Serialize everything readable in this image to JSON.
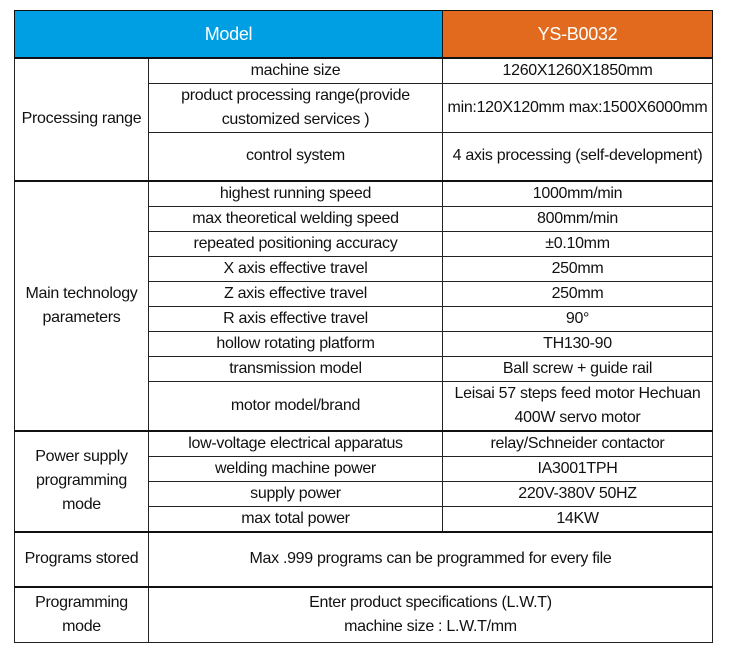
{
  "header": {
    "label": "Model",
    "value": "YS-B0032",
    "label_bg": "#009fe3",
    "value_bg": "#e26a1e"
  },
  "groups": [
    {
      "name": "Processing range",
      "rows": [
        {
          "param": "machine size",
          "value": "1260X1260X1850mm",
          "h": 1
        },
        {
          "param": "product processing range(provide customized services )",
          "value": "min:120X120mm max:1500X6000mm",
          "h": 2
        },
        {
          "param": "control system",
          "value": "4 axis processing (self-development)",
          "h": 2
        }
      ]
    },
    {
      "name": "Main technology parameters",
      "rows": [
        {
          "param": "highest running speed",
          "value": "1000mm/min",
          "h": 1
        },
        {
          "param": "max theoretical welding speed",
          "value": "800mm/min",
          "h": 1
        },
        {
          "param": "repeated positioning accuracy",
          "value": "±0.10mm",
          "h": 1
        },
        {
          "param": "X axis effective travel",
          "value": "250mm",
          "h": 1
        },
        {
          "param": "Z axis effective travel",
          "value": "250mm",
          "h": 1
        },
        {
          "param": "R axis effective travel",
          "value": "90°",
          "h": 1
        },
        {
          "param": "hollow rotating platform",
          "value": "TH130-90",
          "h": 1
        },
        {
          "param": "transmission model",
          "value": "Ball screw + guide rail",
          "h": 1
        },
        {
          "param": "motor model/brand",
          "value": "Leisai 57 steps feed motor Hechuan 400W servo motor",
          "h": 2
        }
      ]
    },
    {
      "name": "Power supply programming mode",
      "rows": [
        {
          "param": "low-voltage electrical apparatus",
          "value": "relay/Schneider contactor",
          "h": 1
        },
        {
          "param": "welding machine power",
          "value": "IA3001TPH",
          "h": 1
        },
        {
          "param": "supply power",
          "value": "220V-380V 50HZ",
          "h": 1
        },
        {
          "param": "max total power",
          "value": "14KW",
          "h": 1
        }
      ]
    }
  ],
  "merged": [
    {
      "name": "Programs stored",
      "value": "Max .999 programs can be programmed for every file"
    },
    {
      "name": "Programming mode",
      "value": "Enter product specifications (L.W.T) machine size : L.W.T/mm"
    }
  ]
}
